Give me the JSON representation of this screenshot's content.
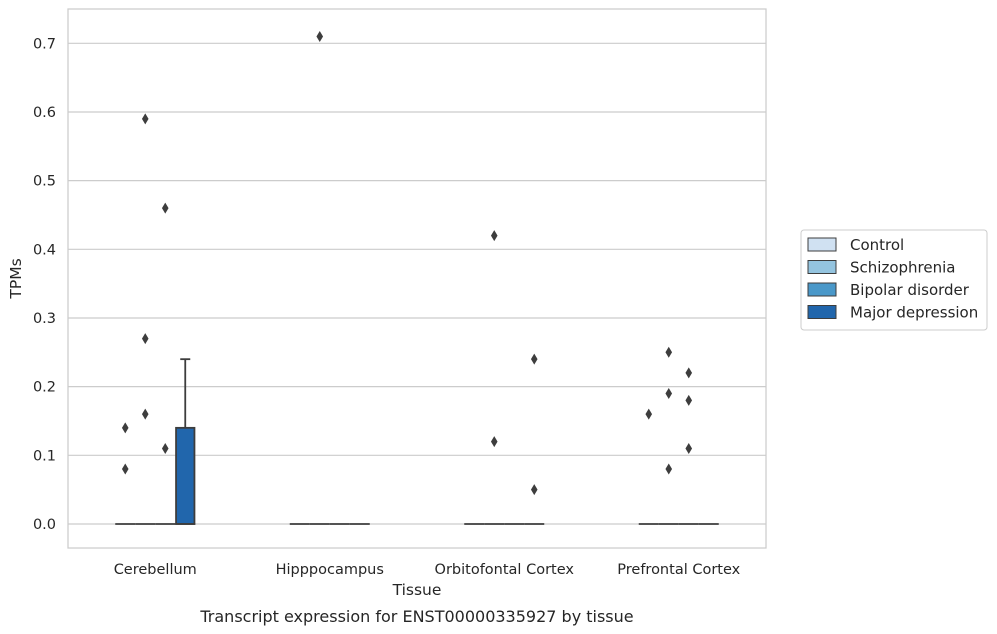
{
  "chart_data": {
    "type": "box",
    "xlabel": "Tissue",
    "ylabel": "TPMs",
    "caption": "Transcript expression for ENST00000335927 by tissue",
    "ylim": [
      -0.035,
      0.75
    ],
    "yticks": [
      0.0,
      0.1,
      0.2,
      0.3,
      0.4,
      0.5,
      0.6,
      0.7
    ],
    "ytick_labels": [
      "0.0",
      "0.1",
      "0.2",
      "0.3",
      "0.4",
      "0.5",
      "0.6",
      "0.7"
    ],
    "grid": true,
    "legend_position": "right",
    "categories": [
      "Cerebellum",
      "Hipppocampus",
      "Orbitofontal Cortex",
      "Prefrontal Cortex"
    ],
    "series": [
      {
        "name": "Control",
        "color": "#d0e1f2",
        "boxes": [
          {
            "q1": 0,
            "median": 0,
            "q3": 0,
            "whisker_low": 0,
            "whisker_high": 0,
            "outliers": [
              0.14,
              0.08
            ]
          },
          {
            "q1": 0,
            "median": 0,
            "q3": 0,
            "whisker_low": 0,
            "whisker_high": 0,
            "outliers": []
          },
          {
            "q1": 0,
            "median": 0,
            "q3": 0,
            "whisker_low": 0,
            "whisker_high": 0,
            "outliers": []
          },
          {
            "q1": 0,
            "median": 0,
            "q3": 0,
            "whisker_low": 0,
            "whisker_high": 0,
            "outliers": [
              0.16
            ]
          }
        ]
      },
      {
        "name": "Schizophrenia",
        "color": "#94c4df",
        "boxes": [
          {
            "q1": 0,
            "median": 0,
            "q3": 0,
            "whisker_low": 0,
            "whisker_high": 0,
            "outliers": [
              0.59,
              0.27,
              0.16
            ]
          },
          {
            "q1": 0,
            "median": 0,
            "q3": 0,
            "whisker_low": 0,
            "whisker_high": 0,
            "outliers": [
              0.71
            ]
          },
          {
            "q1": 0,
            "median": 0,
            "q3": 0,
            "whisker_low": 0,
            "whisker_high": 0,
            "outliers": [
              0.42,
              0.12
            ]
          },
          {
            "q1": 0,
            "median": 0,
            "q3": 0,
            "whisker_low": 0,
            "whisker_high": 0,
            "outliers": [
              0.25,
              0.19,
              0.08
            ]
          }
        ]
      },
      {
        "name": "Bipolar disorder",
        "color": "#4a98c9",
        "boxes": [
          {
            "q1": 0,
            "median": 0,
            "q3": 0,
            "whisker_low": 0,
            "whisker_high": 0,
            "outliers": [
              0.46,
              0.11
            ]
          },
          {
            "q1": 0,
            "median": 0,
            "q3": 0,
            "whisker_low": 0,
            "whisker_high": 0,
            "outliers": []
          },
          {
            "q1": 0,
            "median": 0,
            "q3": 0,
            "whisker_low": 0,
            "whisker_high": 0,
            "outliers": []
          },
          {
            "q1": 0,
            "median": 0,
            "q3": 0,
            "whisker_low": 0,
            "whisker_high": 0,
            "outliers": [
              0.22,
              0.18,
              0.11
            ]
          }
        ]
      },
      {
        "name": "Major depression",
        "color": "#2166ac",
        "boxes": [
          {
            "q1": 0,
            "median": 0,
            "q3": 0.14,
            "whisker_low": 0,
            "whisker_high": 0.24,
            "outliers": []
          },
          {
            "q1": 0,
            "median": 0,
            "q3": 0,
            "whisker_low": 0,
            "whisker_high": 0,
            "outliers": []
          },
          {
            "q1": 0,
            "median": 0,
            "q3": 0,
            "whisker_low": 0,
            "whisker_high": 0,
            "outliers": [
              0.24,
              0.05
            ]
          },
          {
            "q1": 0,
            "median": 0,
            "q3": 0,
            "whisker_low": 0,
            "whisker_high": 0,
            "outliers": []
          }
        ]
      }
    ]
  }
}
